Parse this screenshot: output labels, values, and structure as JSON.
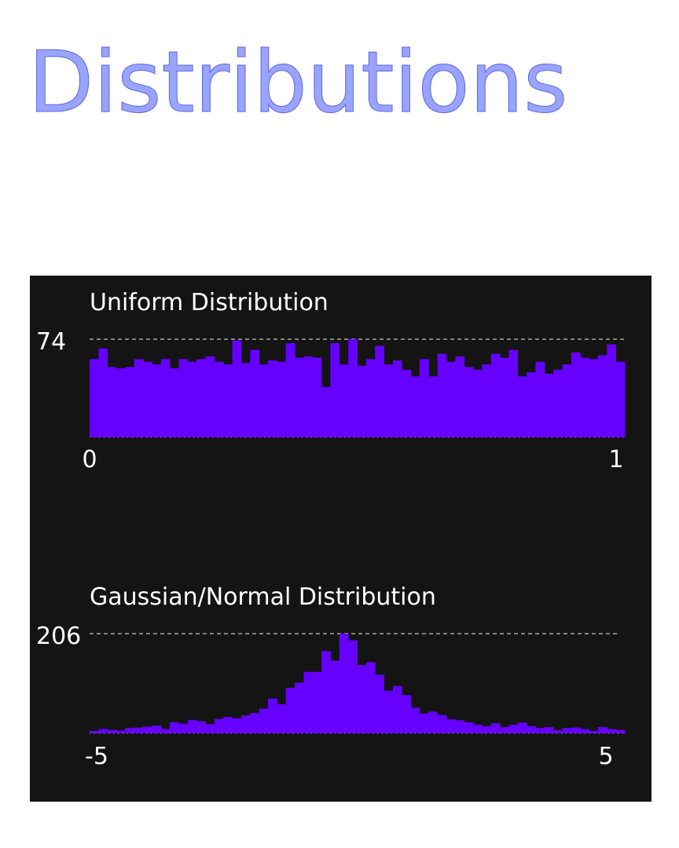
{
  "title": "Distributions",
  "colors": {
    "bar": "#6600ff",
    "panel": "#141414",
    "title": "#9aa4ff",
    "gridline": "#aaaaaa"
  },
  "chart_data": [
    {
      "type": "bar",
      "title": "Uniform Distribution",
      "ymax_label": "74",
      "xmin_label": "0",
      "xmax_label": "1",
      "xlim": [
        0,
        1
      ],
      "ylim": [
        0,
        74
      ],
      "values": [
        59,
        67,
        53,
        52,
        53,
        59,
        57,
        55,
        59,
        52,
        59,
        57,
        59,
        61,
        57,
        55,
        73,
        56,
        66,
        55,
        58,
        57,
        71,
        60,
        61,
        60,
        38,
        71,
        55,
        74,
        54,
        59,
        69,
        55,
        58,
        51,
        46,
        59,
        46,
        63,
        57,
        61,
        53,
        51,
        55,
        63,
        60,
        66,
        46,
        49,
        57,
        48,
        51,
        55,
        64,
        60,
        59,
        62,
        70,
        57
      ]
    },
    {
      "type": "bar",
      "title": "Gaussian/Normal Distribution",
      "ymax_label": "206",
      "xmin_label": "-5",
      "xmax_label": "5",
      "xlim": [
        -5,
        5
      ],
      "ylim": [
        0,
        206
      ],
      "values": [
        5,
        9,
        7,
        6,
        11,
        12,
        14,
        16,
        9,
        23,
        20,
        28,
        25,
        19,
        30,
        34,
        31,
        37,
        42,
        51,
        72,
        60,
        94,
        105,
        127,
        127,
        170,
        150,
        206,
        192,
        141,
        147,
        121,
        88,
        98,
        79,
        53,
        41,
        45,
        38,
        29,
        27,
        23,
        18,
        15,
        21,
        13,
        18,
        22,
        15,
        11,
        13,
        6,
        11,
        12,
        9,
        5,
        13,
        9,
        7
      ]
    }
  ]
}
